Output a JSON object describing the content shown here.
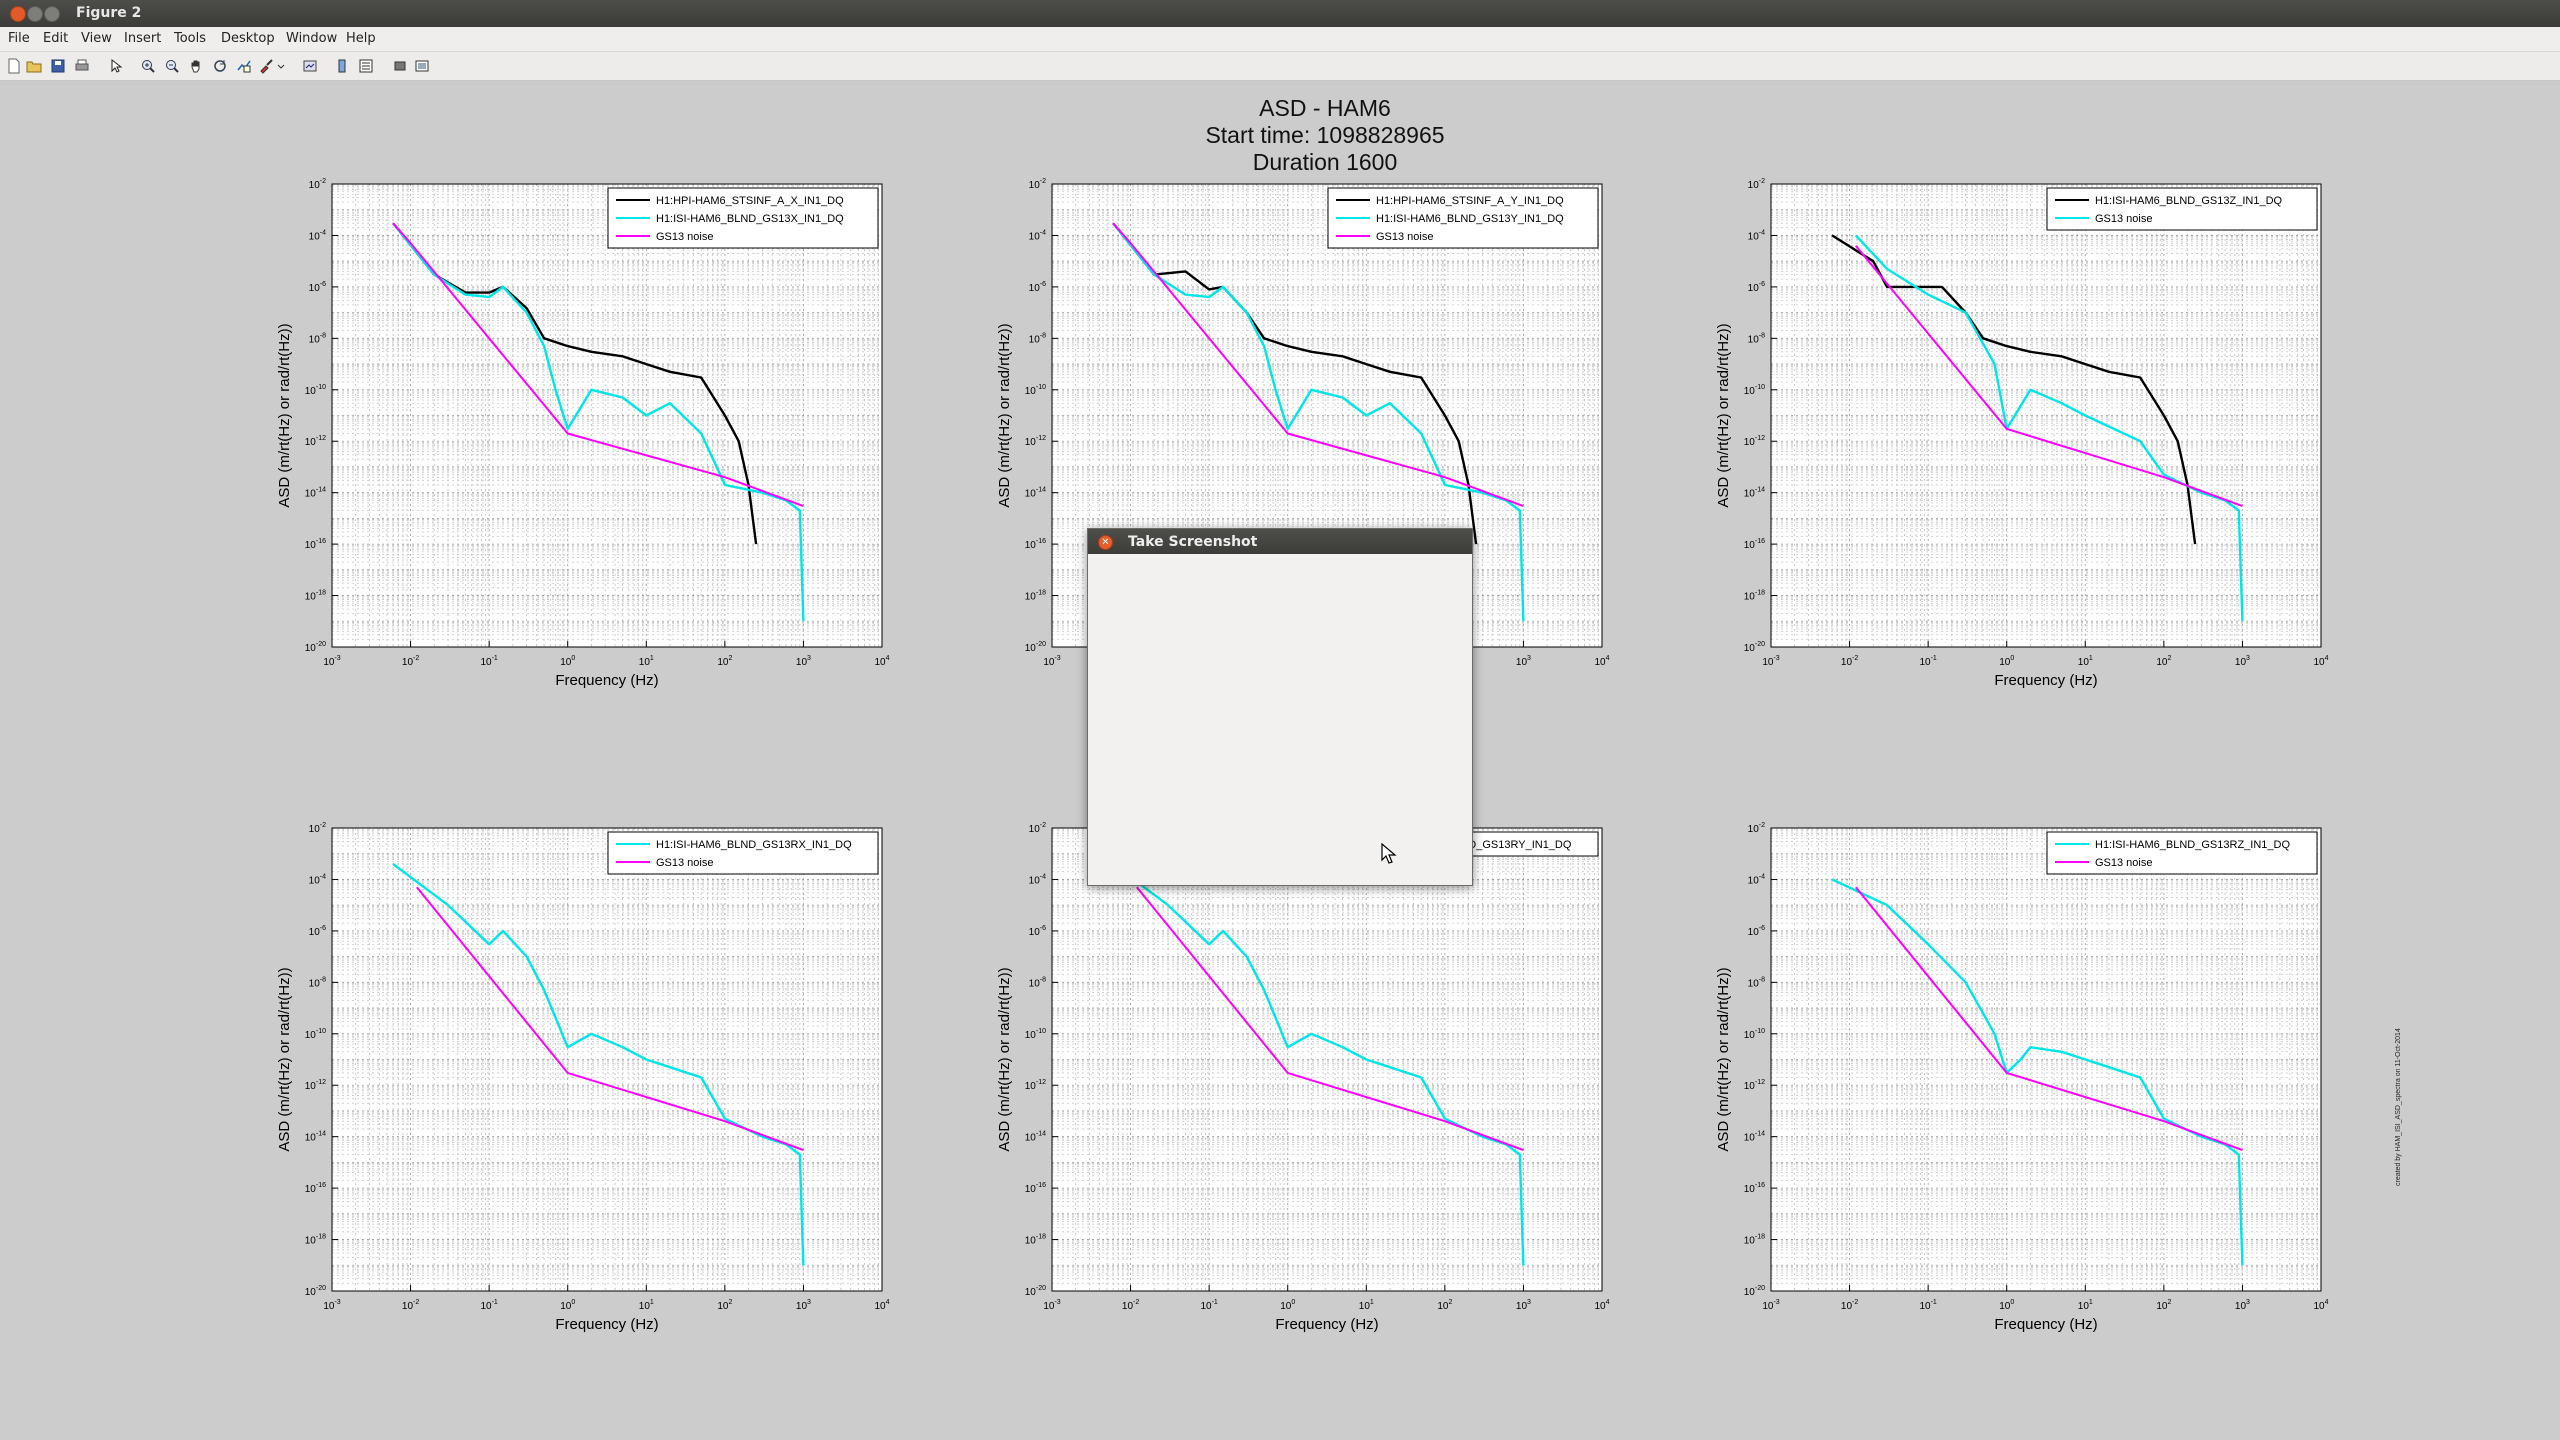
{
  "window": {
    "title": "Figure 2"
  },
  "menu": [
    "File",
    "Edit",
    "View",
    "Insert",
    "Tools",
    "Desktop",
    "Window",
    "Help"
  ],
  "toolbar_icons": [
    "new-file-icon",
    "open-folder-icon",
    "save-icon",
    "print-icon",
    "select-arrow-icon",
    "zoom-in-icon",
    "zoom-out-icon",
    "pan-hand-icon",
    "rotate-icon",
    "data-cursor-icon",
    "brush-icon",
    "link-icon",
    "colorbar-icon",
    "legend-icon",
    "grid-icon",
    "plot-tools-icon"
  ],
  "figure": {
    "title_lines": [
      "ASD - HAM6",
      "Start time: 1098828965",
      "Duration 1600"
    ],
    "credit": "created by HAM_ISI_ASD_spectra on 11-Oct-2014"
  },
  "dialog": {
    "title": "Take Screenshot"
  },
  "chart_data": [
    {
      "type": "line",
      "xlabel": "Frequency (Hz)",
      "ylabel": "ASD (m/rt(Hz) or rad/rt(Hz))",
      "xscale": "log",
      "yscale": "log",
      "xlim": [
        0.001,
        10000
      ],
      "ylim": [
        1e-20,
        0.01
      ],
      "grid": true,
      "legend_position": "top-right",
      "series": [
        {
          "name": "H1:HPI-HAM6_STSINF_A_X_IN1_DQ",
          "color": "#000000",
          "x": [
            0.006,
            0.02,
            0.05,
            0.1,
            0.15,
            0.3,
            0.5,
            1,
            2,
            5,
            10,
            20,
            50,
            100,
            150,
            200,
            250
          ],
          "y": [
            0.0003,
            3e-06,
            6e-07,
            6e-07,
            1e-06,
            1.5e-07,
            1e-08,
            5e-09,
            3e-09,
            2e-09,
            1e-09,
            5e-10,
            3e-10,
            1e-11,
            1e-12,
            2e-14,
            1e-16
          ]
        },
        {
          "name": "H1:ISI-HAM6_BLND_GS13X_IN1_DQ",
          "color": "#00e6e6",
          "x": [
            0.006,
            0.02,
            0.05,
            0.1,
            0.15,
            0.3,
            0.5,
            0.7,
            1,
            2,
            5,
            10,
            20,
            50,
            100,
            300,
            600,
            900,
            1000
          ],
          "y": [
            0.0003,
            3e-06,
            5e-07,
            4e-07,
            1e-06,
            1e-07,
            5e-09,
            1e-10,
            3e-12,
            1e-10,
            5e-11,
            1e-11,
            3e-11,
            2e-12,
            2e-14,
            1e-14,
            5e-15,
            2e-15,
            1e-19
          ]
        },
        {
          "name": "GS13 noise",
          "color": "#ff00ff",
          "x": [
            0.006,
            0.01,
            1,
            100,
            1000
          ],
          "y": [
            0.0003,
            5e-05,
            2e-12,
            4e-14,
            3e-15
          ]
        }
      ]
    },
    {
      "type": "line",
      "xlabel": "Frequency (Hz)",
      "ylabel": "ASD (m/rt(Hz) or rad/rt(Hz))",
      "xscale": "log",
      "yscale": "log",
      "xlim": [
        0.001,
        10000
      ],
      "ylim": [
        1e-20,
        0.01
      ],
      "grid": true,
      "legend_position": "top-right",
      "series": [
        {
          "name": "H1:HPI-HAM6_STSINF_A_Y_IN1_DQ",
          "color": "#000000",
          "x": [
            0.006,
            0.02,
            0.05,
            0.1,
            0.15,
            0.3,
            0.5,
            1,
            2,
            5,
            10,
            20,
            50,
            100,
            150,
            200,
            250
          ],
          "y": [
            0.0003,
            3e-06,
            4e-06,
            8e-07,
            1e-06,
            1e-07,
            1e-08,
            5e-09,
            3e-09,
            2e-09,
            1e-09,
            5e-10,
            3e-10,
            1e-11,
            1e-12,
            2e-14,
            1e-16
          ]
        },
        {
          "name": "H1:ISI-HAM6_BLND_GS13Y_IN1_DQ",
          "color": "#00e6e6",
          "x": [
            0.006,
            0.02,
            0.05,
            0.1,
            0.15,
            0.3,
            0.5,
            0.7,
            1,
            2,
            5,
            10,
            20,
            50,
            100,
            300,
            600,
            900,
            1000
          ],
          "y": [
            0.0003,
            3e-06,
            5e-07,
            4e-07,
            1e-06,
            1e-07,
            5e-09,
            1e-10,
            3e-12,
            1e-10,
            5e-11,
            1e-11,
            3e-11,
            2e-12,
            2e-14,
            1e-14,
            5e-15,
            2e-15,
            1e-19
          ]
        },
        {
          "name": "GS13 noise",
          "color": "#ff00ff",
          "x": [
            0.006,
            0.01,
            1,
            100,
            1000
          ],
          "y": [
            0.0003,
            5e-05,
            2e-12,
            4e-14,
            3e-15
          ]
        }
      ]
    },
    {
      "type": "line",
      "xlabel": "Frequency (Hz)",
      "ylabel": "ASD (m/rt(Hz) or rad/rt(Hz))",
      "xscale": "log",
      "yscale": "log",
      "xlim": [
        0.001,
        10000
      ],
      "ylim": [
        1e-20,
        0.01
      ],
      "grid": true,
      "legend_position": "top-right",
      "series": [
        {
          "name": "H1:ISI-HAM6_BLND_GS13Z_IN1_DQ",
          "color": "#000000",
          "x": [
            0.006,
            0.02,
            0.03,
            0.05,
            0.1,
            0.15,
            0.3,
            0.5,
            1,
            2,
            5,
            10,
            20,
            50,
            100,
            150,
            200,
            250
          ],
          "y": [
            0.0001,
            1e-05,
            1e-06,
            1e-06,
            1e-06,
            1e-06,
            1e-07,
            1e-08,
            5e-09,
            3e-09,
            2e-09,
            1e-09,
            5e-10,
            3e-10,
            1e-11,
            1e-12,
            2e-14,
            1e-16
          ]
        },
        {
          "name": "GS13 noise",
          "color": "#00e6e6",
          "x": [
            0.012,
            0.03,
            0.1,
            0.3,
            0.7,
            1,
            2,
            5,
            10,
            50,
            100,
            300,
            600,
            900,
            1000
          ],
          "y": [
            0.0001,
            5e-06,
            5e-07,
            1e-07,
            1e-09,
            3e-12,
            1e-10,
            3e-11,
            1e-11,
            1e-12,
            5e-14,
            1e-14,
            5e-15,
            2e-15,
            1e-19
          ]
        },
        {
          "name": "",
          "color": "#ff00ff",
          "x": [
            0.012,
            1,
            100,
            1000
          ],
          "y": [
            4e-05,
            3e-12,
            4e-14,
            3e-15
          ]
        }
      ]
    },
    {
      "type": "line",
      "xlabel": "Frequency (Hz)",
      "ylabel": "ASD (m/rt(Hz) or rad/rt(Hz))",
      "xscale": "log",
      "yscale": "log",
      "xlim": [
        0.001,
        10000
      ],
      "ylim": [
        1e-20,
        0.01
      ],
      "grid": true,
      "legend_position": "top-right",
      "series": [
        {
          "name": "H1:ISI-HAM6_BLND_GS13RX_IN1_DQ",
          "color": "#00e6e6",
          "x": [
            0.006,
            0.03,
            0.1,
            0.15,
            0.3,
            0.5,
            1,
            2,
            5,
            10,
            20,
            50,
            100,
            300,
            600,
            900,
            1000
          ],
          "y": [
            0.0004,
            1e-05,
            3e-07,
            1e-06,
            1e-07,
            5e-09,
            3e-11,
            1e-10,
            3e-11,
            1e-11,
            5e-12,
            2e-12,
            5e-14,
            1e-14,
            5e-15,
            2e-15,
            1e-19
          ]
        },
        {
          "name": "GS13 noise",
          "color": "#ff00ff",
          "x": [
            0.012,
            1,
            100,
            1000
          ],
          "y": [
            5e-05,
            3e-12,
            4e-14,
            3e-15
          ]
        }
      ]
    },
    {
      "type": "line",
      "xlabel": "Frequency (Hz)",
      "ylabel": "ASD (m/rt(Hz) or rad/rt(Hz))",
      "xscale": "log",
      "yscale": "log",
      "xlim": [
        0.001,
        10000
      ],
      "ylim": [
        1e-20,
        0.01
      ],
      "grid": true,
      "legend_position": "top-right",
      "series": [
        {
          "name": "H1:ISI-HAM6_BLND_GS13RY_IN1_DQ",
          "color": "#00e6e6",
          "x": [
            0.006,
            0.03,
            0.1,
            0.15,
            0.3,
            0.5,
            1,
            2,
            5,
            10,
            20,
            50,
            100,
            300,
            600,
            900,
            1000
          ],
          "y": [
            0.0004,
            1e-05,
            3e-07,
            1e-06,
            1e-07,
            5e-09,
            3e-11,
            1e-10,
            3e-11,
            1e-11,
            5e-12,
            2e-12,
            5e-14,
            1e-14,
            5e-15,
            2e-15,
            1e-19
          ]
        },
        {
          "name": "",
          "color": "#ff00ff",
          "x": [
            0.012,
            1,
            100,
            1000
          ],
          "y": [
            5e-05,
            3e-12,
            4e-14,
            3e-15
          ]
        }
      ]
    },
    {
      "type": "line",
      "xlabel": "Frequency (Hz)",
      "ylabel": "ASD (m/rt(Hz) or rad/rt(Hz))",
      "xscale": "log",
      "yscale": "log",
      "xlim": [
        0.001,
        10000
      ],
      "ylim": [
        1e-20,
        0.01
      ],
      "grid": true,
      "legend_position": "top-right",
      "series": [
        {
          "name": "H1:ISI-HAM6_BLND_GS13RZ_IN1_DQ",
          "color": "#00e6e6",
          "x": [
            0.006,
            0.03,
            0.1,
            0.3,
            0.7,
            1,
            1.5,
            2,
            5,
            10,
            20,
            50,
            100,
            300,
            600,
            900,
            1000
          ],
          "y": [
            0.0001,
            1e-05,
            3e-07,
            1e-08,
            1e-10,
            3e-12,
            1e-11,
            3e-11,
            2e-11,
            1e-11,
            5e-12,
            2e-12,
            5e-14,
            1e-14,
            5e-15,
            2e-15,
            1e-19
          ]
        },
        {
          "name": "GS13 noise",
          "color": "#ff00ff",
          "x": [
            0.012,
            1,
            100,
            1000
          ],
          "y": [
            5e-05,
            3e-12,
            4e-14,
            3e-15
          ]
        }
      ]
    }
  ]
}
